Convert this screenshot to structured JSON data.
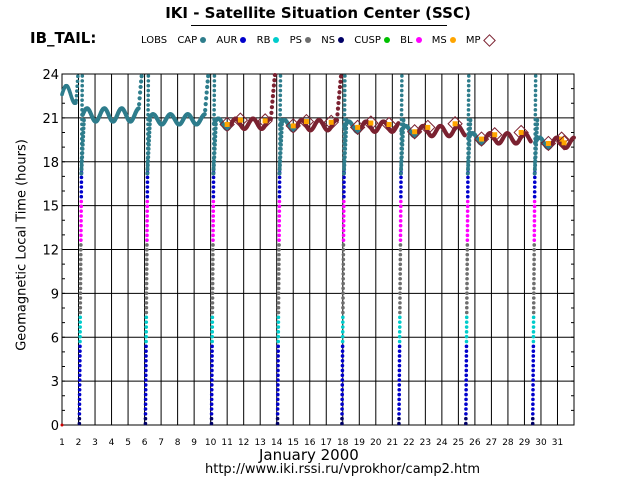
{
  "header": {
    "title": "IKI - Satellite Situation Center (SSC)",
    "panel_label": "IB_TAIL:"
  },
  "legend": [
    {
      "label": "LOBS",
      "color": "",
      "marker": "none"
    },
    {
      "label": "CAP",
      "color": "#2e7d8c",
      "marker": "dot"
    },
    {
      "label": "AUR",
      "color": "#0000cc",
      "marker": "dot"
    },
    {
      "label": "RB",
      "color": "#00cccc",
      "marker": "dot"
    },
    {
      "label": "PS",
      "color": "#6e6e6e",
      "marker": "dot"
    },
    {
      "label": "NS",
      "color": "#000066",
      "marker": "dot"
    },
    {
      "label": "CUSP",
      "color": "#00c000",
      "marker": "dot"
    },
    {
      "label": "BL",
      "color": "#ff00ff",
      "marker": "dot"
    },
    {
      "label": "MS",
      "color": "#ffa500",
      "marker": "dot"
    },
    {
      "label": "MP",
      "color": "#7b2231",
      "marker": "diamond"
    }
  ],
  "footer": {
    "month_label": "January    2000",
    "url": "http://www.iki.rssi.ru/vprokhor/camp2.htm"
  },
  "chart_data": {
    "type": "scatter",
    "title": "IKI - Satellite Situation Center (SSC)",
    "ylabel": "Geomagnetic  Local Time  (hours)",
    "xlabel": "January    2000",
    "xlim": [
      1,
      32
    ],
    "ylim": [
      0,
      24
    ],
    "y_ticks": [
      0,
      3,
      6,
      9,
      12,
      15,
      18,
      21,
      24
    ],
    "x_ticks": [
      1,
      2,
      3,
      4,
      5,
      6,
      7,
      8,
      9,
      10,
      11,
      12,
      13,
      14,
      15,
      16,
      17,
      18,
      19,
      20,
      21,
      22,
      23,
      24,
      25,
      26,
      27,
      28,
      29,
      30,
      31
    ],
    "grid": true,
    "legend_position": "top",
    "colors": {
      "CAP": "#2e7d8c",
      "AUR": "#0000cc",
      "RB": "#00cccc",
      "PS": "#6e6e6e",
      "NS": "#000066",
      "BL": "#ff00ff",
      "MS": "#ffa500",
      "MP": "#7b2231"
    },
    "orbits": [
      {
        "drop_day": 2.05,
        "curve_start": 2.25,
        "curve_end": 5.9,
        "base": 21.2,
        "amp": 0.45,
        "region": "CAP"
      },
      {
        "drop_day": 6.05,
        "curve_start": 6.25,
        "curve_end": 9.9,
        "base": 20.9,
        "amp": 0.35,
        "region": "CAP"
      },
      {
        "drop_day": 10.05,
        "curve_start": 10.2,
        "curve_end": 13.9,
        "base": 20.6,
        "amp": 0.35,
        "region": "MP"
      },
      {
        "drop_day": 14.05,
        "curve_start": 14.2,
        "curve_end": 17.9,
        "base": 20.5,
        "amp": 0.35,
        "region": "MP"
      },
      {
        "drop_day": 17.95,
        "curve_start": 18.1,
        "curve_end": 21.4,
        "base": 20.4,
        "amp": 0.35,
        "region": "MP"
      },
      {
        "drop_day": 21.4,
        "curve_start": 21.55,
        "curve_end": 25.4,
        "base": 20.1,
        "amp": 0.35,
        "region": "MP"
      },
      {
        "drop_day": 25.45,
        "curve_start": 25.6,
        "curve_end": 29.4,
        "base": 19.6,
        "amp": 0.35,
        "region": "MP"
      },
      {
        "drop_day": 29.5,
        "curve_start": 29.65,
        "curve_end": 32,
        "base": 19.3,
        "amp": 0.35,
        "region": "MP"
      }
    ]
  }
}
